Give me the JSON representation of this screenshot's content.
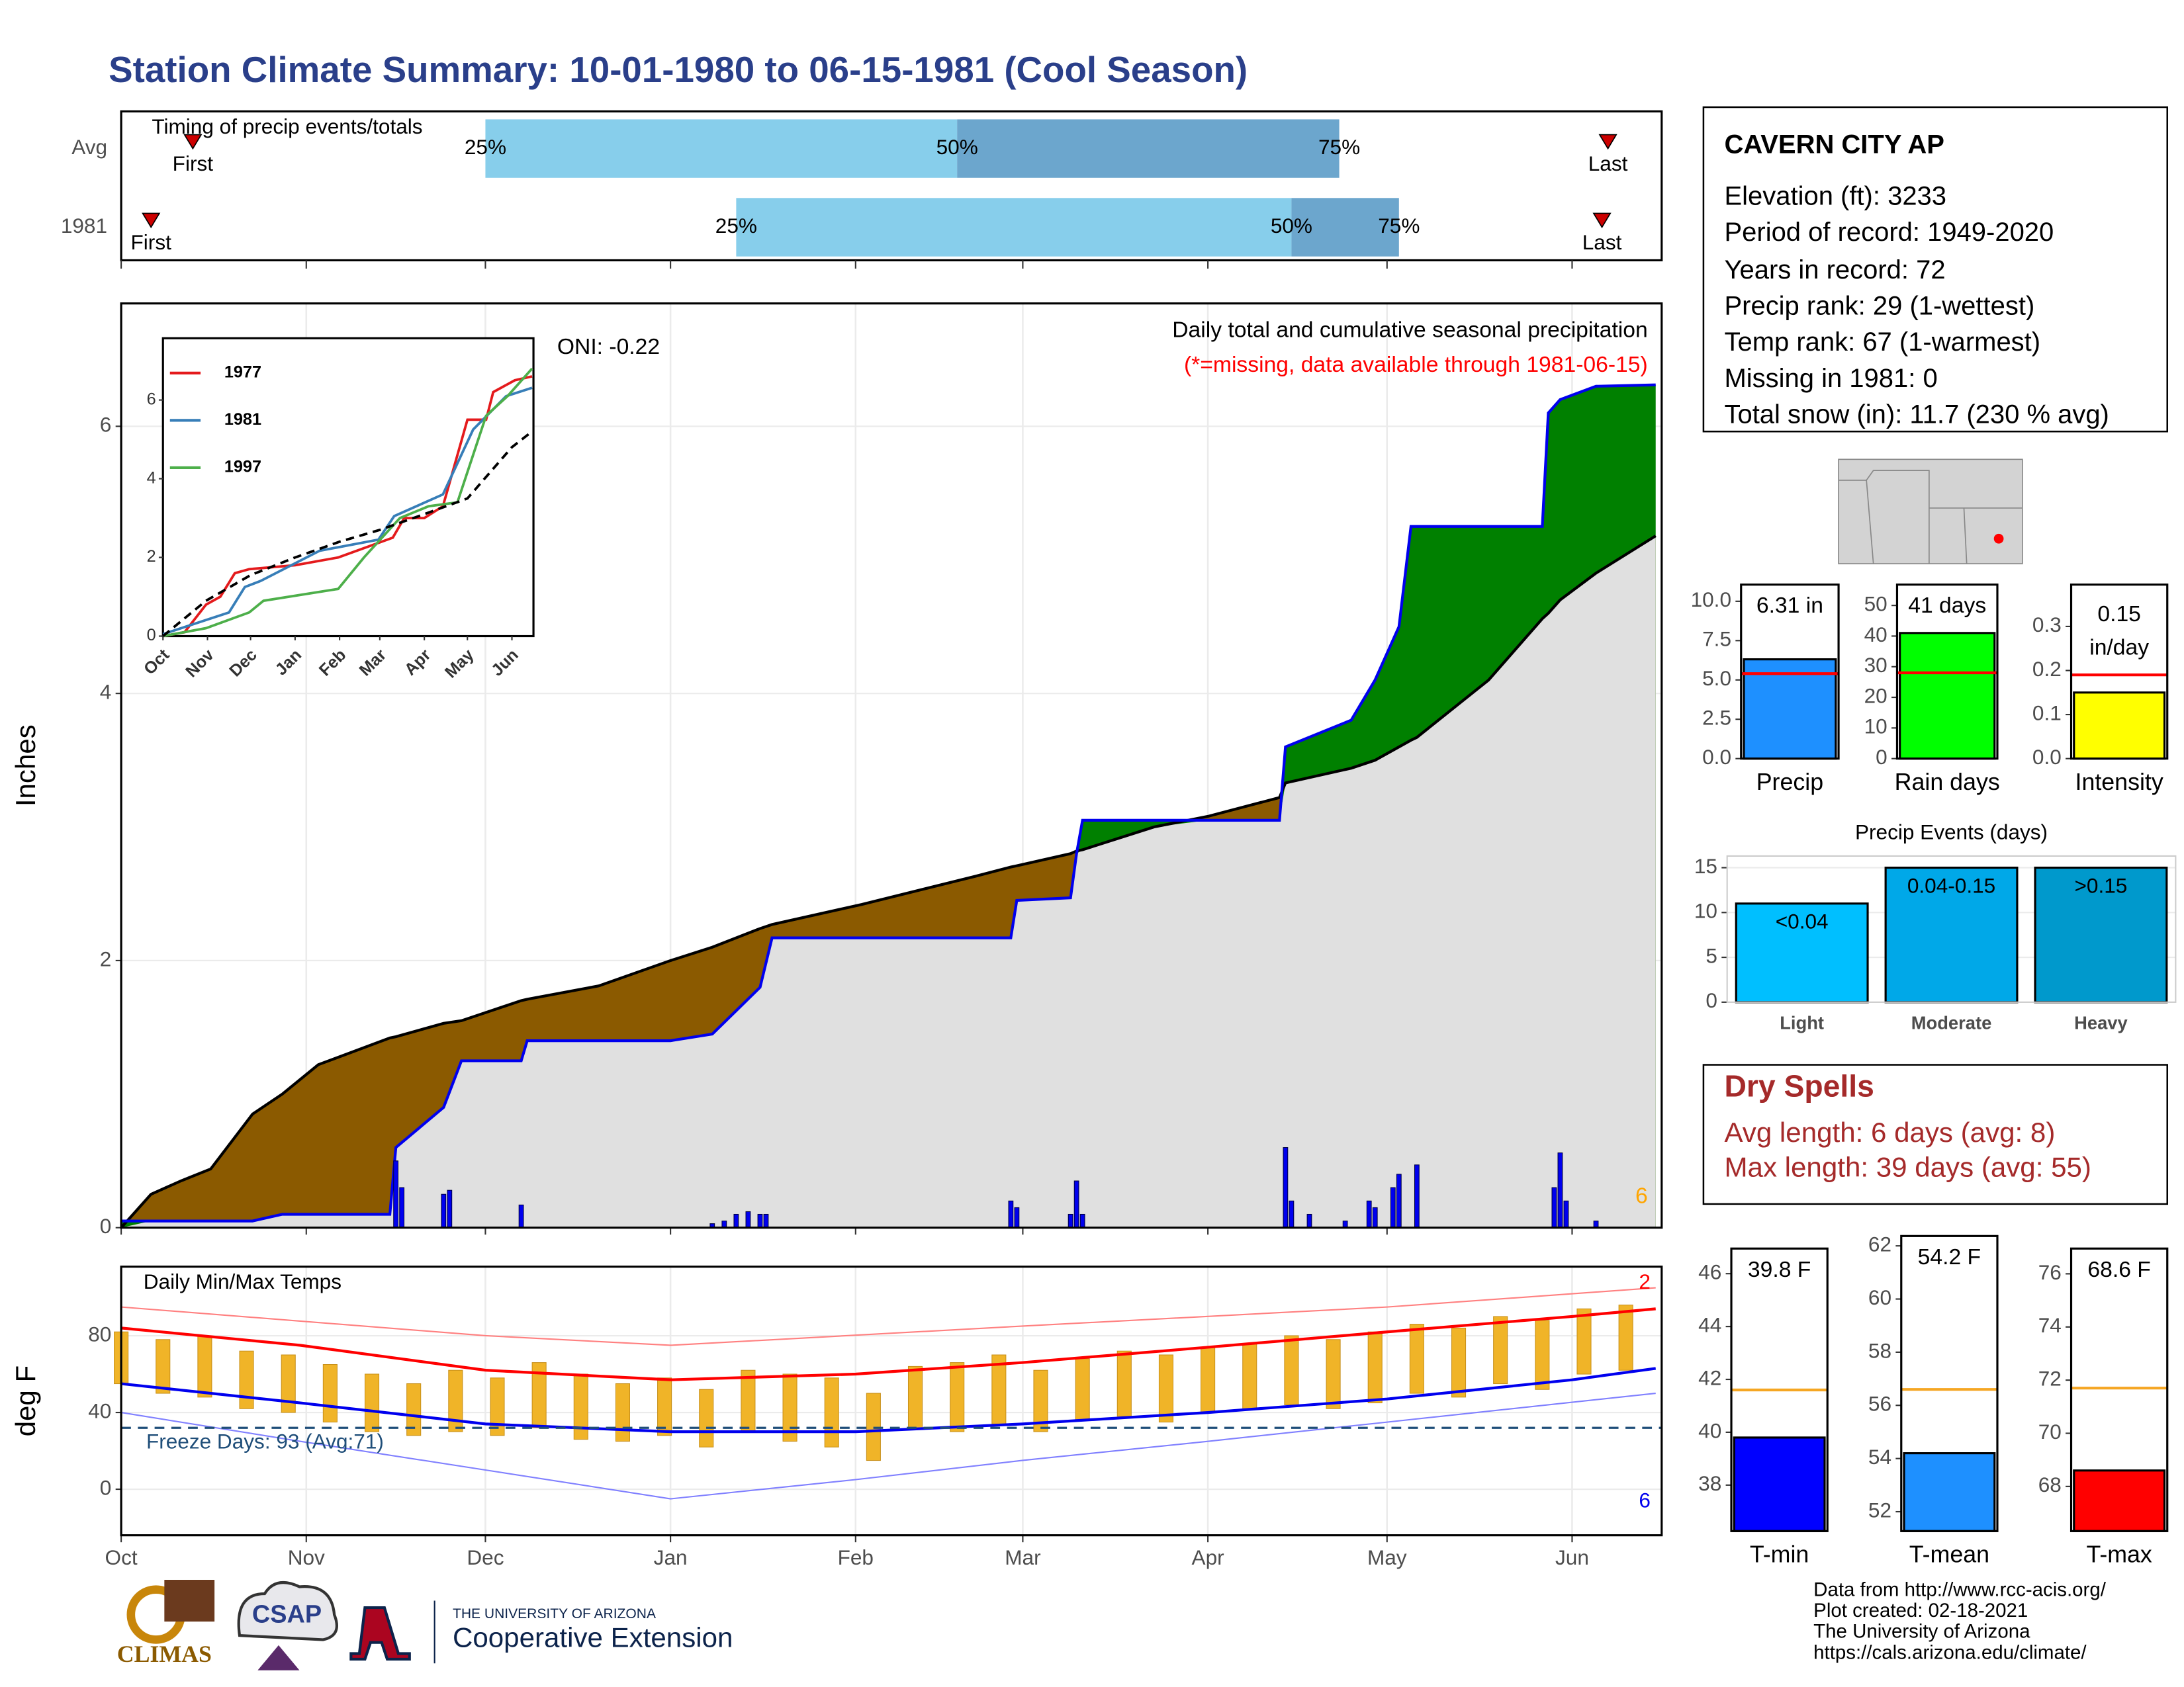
{
  "title": "Station Climate Summary: 10-01-1980 to 06-15-1981 (Cool Season)",
  "station": {
    "name": "CAVERN CITY AP",
    "lines": [
      "Elevation (ft): 3233",
      "Period of record: 1949-2020",
      "Years in record: 72",
      "Precip rank: 29 (1-wettest)",
      "Temp rank: 67 (1-warmest)",
      "Missing in 1981: 0",
      "Total snow (in): 11.7 (230 % avg)"
    ]
  },
  "dry_spells": {
    "title": "Dry Spells",
    "lines": [
      "Avg length: 6 days (avg: 8)",
      "Max length: 39 days (avg: 55)"
    ]
  },
  "footer": [
    "Data from http://www.rcc-acis.org/",
    "Plot created: 02-18-2021",
    "The University of Arizona",
    "https://cals.arizona.edu/climate/"
  ],
  "logos": {
    "climas": "CLIMAS",
    "csap": "CSAP",
    "university": "THE UNIVERSITY OF ARIZONA",
    "extension": "Cooperative Extension"
  },
  "chart_data": [
    {
      "type": "timeline",
      "title": "Timing of precip events/totals",
      "categories": [
        "Avg",
        "1981"
      ],
      "first": [
        12,
        5
      ],
      "q25": [
        61,
        103
      ],
      "q50": [
        140,
        196
      ],
      "q75": [
        204,
        214
      ],
      "last": [
        249,
        248
      ],
      "first_label": "First",
      "last_label": "Last",
      "quartile_labels": [
        "25%",
        "50%",
        "75%"
      ],
      "colors": [
        "#87ceeb",
        "#6ca6cd",
        "#cc0000"
      ],
      "xlim": [
        0,
        258
      ],
      "xticks": [
        0,
        31,
        61,
        92,
        123,
        151,
        182,
        212,
        243
      ]
    },
    {
      "type": "area",
      "ylabel": "Inches",
      "annotations": [
        {
          "text": "ONI: -0.22",
          "color": "#000000"
        },
        {
          "text": "Daily total and cumulative seasonal precipitation",
          "color": "#000000"
        },
        {
          "text": "(*=missing, data available through 1981-06-15)",
          "color": "#ff0000"
        },
        {
          "text": "6",
          "color": "#ffa500"
        }
      ],
      "x": [
        0,
        5,
        10,
        15,
        22,
        27,
        33,
        45,
        46,
        54,
        57,
        67,
        68,
        80,
        92,
        99,
        107,
        109,
        124,
        143,
        149,
        150,
        159,
        160,
        161,
        173,
        182,
        194,
        195,
        206,
        210,
        214,
        216,
        217,
        229,
        238,
        239,
        241,
        247,
        257
      ],
      "series": [
        {
          "color": "#000000",
          "values": [
            0,
            0.25,
            0.35,
            0.44,
            0.85,
            1.0,
            1.22,
            1.42,
            1.43,
            1.53,
            1.55,
            1.7,
            1.71,
            1.81,
            2.0,
            2.1,
            2.24,
            2.27,
            2.42,
            2.63,
            2.7,
            2.71,
            2.8,
            2.82,
            2.83,
            3.0,
            3.08,
            3.22,
            3.33,
            3.44,
            3.5,
            3.6,
            3.65,
            3.67,
            4.1,
            4.56,
            4.6,
            4.7,
            4.9,
            5.18
          ]
        },
        {
          "color": "#0000ee",
          "values": [
            0.05,
            0.05,
            0.05,
            0.05,
            0.05,
            0.1,
            0.1,
            0.1,
            0.6,
            0.9,
            1.25,
            1.25,
            1.4,
            1.4,
            1.4,
            1.45,
            1.8,
            2.17,
            2.17,
            2.17,
            2.17,
            2.45,
            2.47,
            2.8,
            3.05,
            3.05,
            3.05,
            3.05,
            3.6,
            3.8,
            4.1,
            4.5,
            5.25,
            5.25,
            5.25,
            5.25,
            6.1,
            6.2,
            6.3,
            6.31
          ]
        }
      ],
      "above_color": "#008000",
      "below_color": "#8b5a00",
      "base_color": "#e0e0e0",
      "daily": {
        "color": "#0000ee",
        "x": [
          46,
          47,
          54,
          55,
          67,
          99,
          101,
          103,
          105,
          107,
          108,
          149,
          150,
          159,
          160,
          161,
          195,
          196,
          199,
          205,
          209,
          210,
          213,
          214,
          217,
          240,
          241,
          242,
          247
        ],
        "values": [
          0.5,
          0.3,
          0.25,
          0.28,
          0.17,
          0.03,
          0.05,
          0.1,
          0.12,
          0.1,
          0.1,
          0.2,
          0.15,
          0.1,
          0.35,
          0.1,
          0.6,
          0.2,
          0.1,
          0.05,
          0.2,
          0.15,
          0.3,
          0.4,
          0.47,
          0.3,
          0.56,
          0.2,
          0.05
        ]
      },
      "xlim": [
        0,
        258
      ],
      "xticks": [
        0,
        31,
        61,
        92,
        123,
        151,
        182,
        212,
        243
      ],
      "ylim": [
        0,
        6.92
      ],
      "yticks": [
        0,
        2,
        4,
        6
      ],
      "grid": true
    },
    {
      "type": "line",
      "series": [
        {
          "name": "1977",
          "color": "#e41a1c",
          "x": [
            0,
            15,
            30,
            40,
            50,
            60,
            92,
            122,
            160,
            168,
            182,
            195,
            212,
            225,
            230,
            245,
            257
          ],
          "values": [
            0,
            0.1,
            0.8,
            1.0,
            1.6,
            1.7,
            1.8,
            2.0,
            2.5,
            3.0,
            3.0,
            3.3,
            5.5,
            5.5,
            6.2,
            6.5,
            6.6
          ]
        },
        {
          "name": "1981",
          "color": "#377eb8",
          "x": [
            0,
            46,
            57,
            68,
            109,
            150,
            161,
            195,
            216,
            239,
            257
          ],
          "values": [
            0.05,
            0.6,
            1.25,
            1.4,
            2.17,
            2.45,
            3.05,
            3.6,
            5.25,
            6.1,
            6.31
          ]
        },
        {
          "name": "1997",
          "color": "#4daf4a",
          "x": [
            0,
            30,
            60,
            70,
            122,
            140,
            165,
            185,
            205,
            215,
            225,
            240,
            257
          ],
          "values": [
            0,
            0.2,
            0.6,
            0.9,
            1.2,
            2.0,
            3.0,
            3.3,
            3.4,
            4.5,
            5.6,
            6.1,
            6.8
          ]
        },
        {
          "color": "#000000",
          "dash": true,
          "x": [
            0,
            30,
            61,
            92,
            123,
            151,
            182,
            212,
            243,
            257
          ],
          "values": [
            0,
            0.9,
            1.55,
            2.0,
            2.4,
            2.7,
            3.1,
            3.5,
            4.8,
            5.2
          ]
        }
      ],
      "xlim": [
        0,
        258
      ],
      "xticks": [
        {
          "value": 0,
          "label": "Oct"
        },
        {
          "value": 31,
          "label": "Nov"
        },
        {
          "value": 61,
          "label": "Dec"
        },
        {
          "value": 92,
          "label": "Jan"
        },
        {
          "value": 123,
          "label": "Feb"
        },
        {
          "value": 151,
          "label": "Mar"
        },
        {
          "value": 182,
          "label": "Apr"
        },
        {
          "value": 212,
          "label": "May"
        },
        {
          "value": 243,
          "label": "Jun"
        }
      ],
      "ylim": [
        0,
        7.57
      ],
      "yticks": [
        0,
        2,
        4,
        6
      ]
    },
    {
      "type": "range",
      "title": "Daily Min/Max Temps",
      "ylabel": "deg F",
      "bar_color": "#f0b428",
      "x": [
        0,
        7,
        14,
        21,
        28,
        35,
        42,
        49,
        56,
        63,
        70,
        77,
        84,
        91,
        98,
        105,
        112,
        119,
        126,
        133,
        140,
        147,
        154,
        161,
        168,
        175,
        182,
        189,
        196,
        203,
        210,
        217,
        224,
        231,
        238,
        245,
        252
      ],
      "max": [
        82,
        78,
        80,
        72,
        70,
        65,
        60,
        55,
        62,
        58,
        66,
        60,
        55,
        58,
        52,
        62,
        60,
        58,
        50,
        64,
        66,
        70,
        62,
        68,
        72,
        70,
        74,
        76,
        80,
        78,
        82,
        86,
        84,
        90,
        88,
        94,
        96
      ],
      "min": [
        55,
        50,
        48,
        42,
        40,
        35,
        30,
        28,
        30,
        28,
        32,
        26,
        25,
        28,
        22,
        30,
        25,
        22,
        15,
        32,
        30,
        34,
        30,
        36,
        38,
        35,
        40,
        42,
        44,
        42,
        45,
        50,
        48,
        55,
        52,
        60,
        62
      ],
      "lines": [
        {
          "color": "#ff0000",
          "width": 2,
          "x": [
            0,
            30,
            61,
            92,
            123,
            151,
            182,
            212,
            243,
            257
          ],
          "values": [
            84,
            75,
            62,
            57,
            60,
            66,
            74,
            82,
            90,
            94
          ]
        },
        {
          "color": "#0000ee",
          "width": 2,
          "x": [
            0,
            30,
            61,
            92,
            123,
            151,
            182,
            212,
            243,
            257
          ],
          "values": [
            55,
            45,
            34,
            30,
            30,
            34,
            40,
            47,
            57,
            63
          ]
        },
        {
          "color": "#ff8080",
          "width": 1,
          "x": [
            0,
            61,
            92,
            151,
            212,
            257
          ],
          "values": [
            95,
            80,
            75,
            85,
            95,
            105
          ]
        },
        {
          "color": "#8080ff",
          "width": 1,
          "x": [
            0,
            30,
            61,
            92,
            123,
            151,
            182,
            212,
            257
          ],
          "values": [
            40,
            25,
            10,
            -5,
            5,
            15,
            25,
            35,
            50
          ]
        }
      ],
      "freeze": {
        "value": 32,
        "label": "Freeze Days: 93 (Avg:71)",
        "color": "#1f4e79"
      },
      "annotations": [
        {
          "text": "2",
          "color": "#ff0000"
        },
        {
          "text": "6",
          "color": "#0000ee"
        }
      ],
      "xlim": [
        0,
        258
      ],
      "xticks": [
        {
          "value": 0,
          "label": "Oct"
        },
        {
          "value": 31,
          "label": "Nov"
        },
        {
          "value": 61,
          "label": "Dec"
        },
        {
          "value": 92,
          "label": "Jan"
        },
        {
          "value": 123,
          "label": "Feb"
        },
        {
          "value": 151,
          "label": "Mar"
        },
        {
          "value": 182,
          "label": "Apr"
        },
        {
          "value": 212,
          "label": "May"
        },
        {
          "value": 243,
          "label": "Jun"
        }
      ],
      "ylim": [
        -24,
        116
      ],
      "yticks": [
        0,
        40,
        80
      ],
      "grid": true
    },
    {
      "type": "bar",
      "categories": [
        "Precip"
      ],
      "values": [
        6.31
      ],
      "value_labels": [
        "6.31 in"
      ],
      "average": 5.4,
      "color": "#1e90ff",
      "avg_color": "#ff0000",
      "ylim": [
        0,
        11.06
      ],
      "yticks": [
        {
          "value": 0,
          "label": "0.0"
        },
        2.5,
        {
          "value": 5,
          "label": "5.0"
        },
        7.5,
        {
          "value": 10,
          "label": "10.0"
        }
      ]
    },
    {
      "type": "bar",
      "categories": [
        "Rain days"
      ],
      "values": [
        41
      ],
      "value_labels": [
        "41 days"
      ],
      "average": 28,
      "color": "#00ff00",
      "avg_color": "#ff0000",
      "ylim": [
        0,
        56.8
      ],
      "yticks": [
        0,
        10,
        20,
        30,
        40,
        50
      ]
    },
    {
      "type": "bar",
      "categories": [
        "Intensity"
      ],
      "values": [
        0.15
      ],
      "value_labels": [
        "0.15\nin/day"
      ],
      "average": 0.19,
      "color": "#ffff00",
      "avg_color": "#ff0000",
      "ylim": [
        0,
        0.395
      ],
      "yticks": [
        {
          "value": 0,
          "label": "0.0"
        },
        0.1,
        0.2,
        0.3
      ]
    },
    {
      "type": "bar",
      "title": "Precip Events (days)",
      "categories": [
        "Light",
        "Moderate",
        "Heavy"
      ],
      "values": [
        11,
        15,
        15
      ],
      "bar_labels": [
        "<0.04",
        "0.04-0.15",
        ">0.15"
      ],
      "colors": [
        "#00bfff",
        "#00a8e8",
        "#0099cc"
      ],
      "ylim": [
        0,
        16.3
      ],
      "yticks": [
        0,
        5,
        10,
        15
      ],
      "grid": true
    },
    {
      "type": "bar",
      "categories": [
        "T-min"
      ],
      "values": [
        39.8
      ],
      "value_labels": [
        "39.8 F"
      ],
      "average": 41.6,
      "color": "#0000ff",
      "avg_color": "#f5a623",
      "ylim": [
        36.26,
        46.95
      ],
      "yticks": [
        38,
        40,
        42,
        44,
        46
      ]
    },
    {
      "type": "bar",
      "categories": [
        "T-mean"
      ],
      "values": [
        54.2
      ],
      "value_labels": [
        "54.2 F"
      ],
      "average": 56.6,
      "color": "#1e90ff",
      "avg_color": "#f5a623",
      "ylim": [
        51.27,
        62.37
      ],
      "yticks": [
        52,
        54,
        56,
        58,
        60,
        62
      ]
    },
    {
      "type": "bar",
      "categories": [
        "T-max"
      ],
      "values": [
        68.6
      ],
      "value_labels": [
        "68.6 F"
      ],
      "average": 71.7,
      "color": "#ff0000",
      "avg_color": "#f5a623",
      "ylim": [
        66.32,
        76.95
      ],
      "yticks": [
        68,
        70,
        72,
        74,
        76
      ]
    }
  ]
}
